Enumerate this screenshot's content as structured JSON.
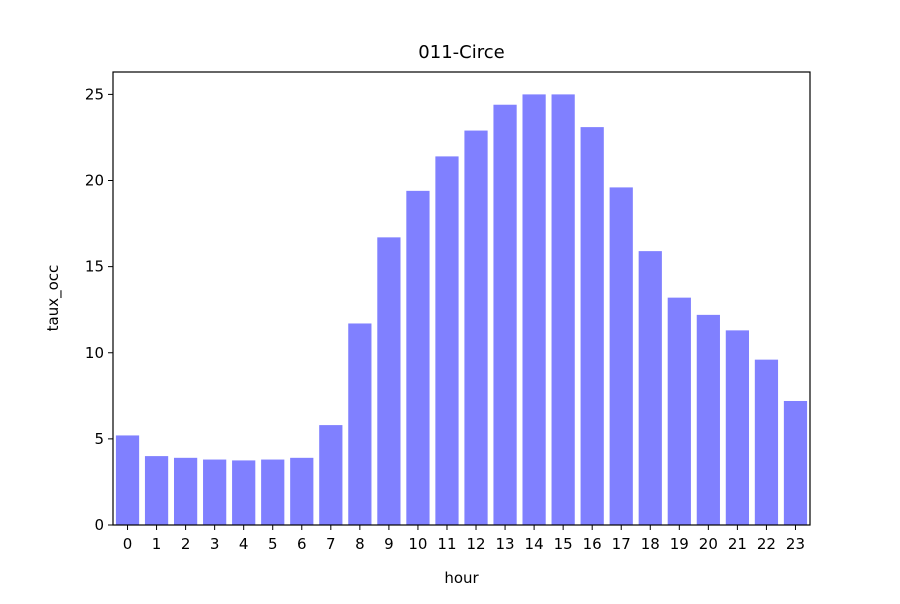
{
  "chart_data": {
    "type": "bar",
    "title": "011-Circe",
    "xlabel": "hour",
    "ylabel": "taux_occ",
    "categories": [
      "0",
      "1",
      "2",
      "3",
      "4",
      "5",
      "6",
      "7",
      "8",
      "9",
      "10",
      "11",
      "12",
      "13",
      "14",
      "15",
      "16",
      "17",
      "18",
      "19",
      "20",
      "21",
      "22",
      "23"
    ],
    "values": [
      5.2,
      4.0,
      3.9,
      3.8,
      3.75,
      3.8,
      3.9,
      5.8,
      11.7,
      16.7,
      19.4,
      21.4,
      22.9,
      24.4,
      25.0,
      25.0,
      23.1,
      19.6,
      15.9,
      13.2,
      12.2,
      11.3,
      9.6,
      7.2
    ],
    "ylim": [
      0,
      26.3
    ],
    "yticks": [
      "0",
      "5",
      "10",
      "15",
      "20",
      "25"
    ],
    "bar_color": "#8080ff",
    "grid": false,
    "legend": "none"
  }
}
